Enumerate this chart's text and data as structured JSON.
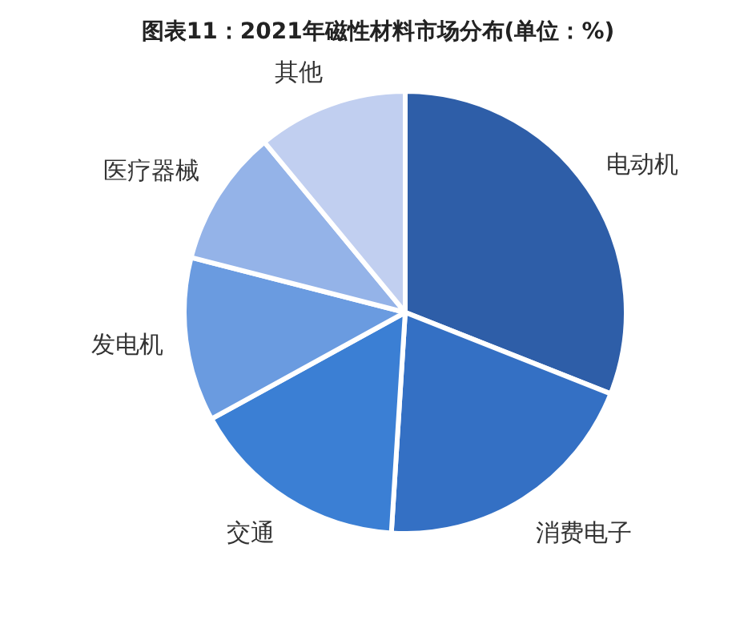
{
  "chart_data": {
    "type": "pie",
    "title": "图表11：2021年磁性材料市场分布(单位：%)",
    "categories": [
      "电动机",
      "消费电子",
      "交通",
      "发电机",
      "医疗器械",
      "其他"
    ],
    "values": [
      31,
      20,
      16,
      12,
      10,
      11
    ],
    "colors": [
      "#2e5ea8",
      "#3470c4",
      "#3b7fd4",
      "#6a9be0",
      "#94b3e8",
      "#c1cff0"
    ],
    "legend": false
  }
}
